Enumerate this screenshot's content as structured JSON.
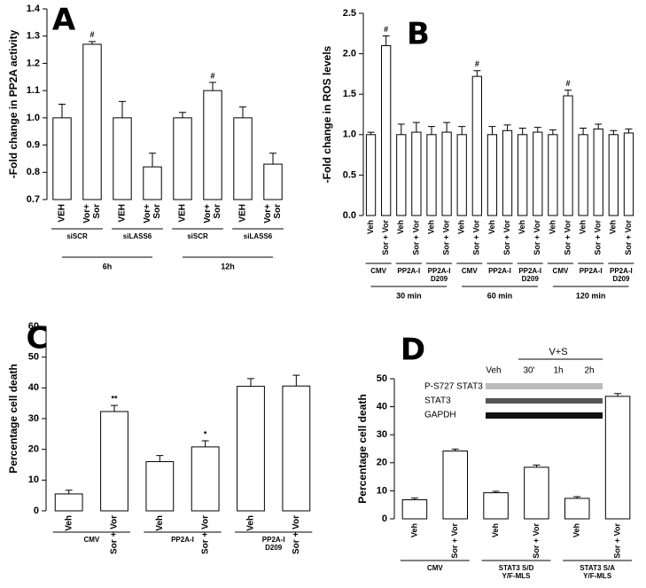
{
  "chart_data": [
    {
      "type": "bar",
      "panel": "A",
      "ylabel": "-Fold change in PP2A activity",
      "categories": [
        "VEH",
        [
          "Vor+",
          "Sor"
        ],
        "VEH",
        [
          "Vor+",
          "Sor"
        ],
        "VEH",
        [
          "Vor+",
          "Sor"
        ],
        "VEH",
        [
          "Vor+",
          "Sor"
        ]
      ],
      "values": [
        1.0,
        1.27,
        1.0,
        0.82,
        1.0,
        1.1,
        1.0,
        0.83
      ],
      "errors": [
        0.05,
        0.01,
        0.06,
        0.05,
        0.02,
        0.03,
        0.04,
        0.04
      ],
      "annotations": [
        null,
        "#",
        null,
        null,
        null,
        "#",
        null,
        null
      ],
      "groups": [
        [
          "siSCR"
        ],
        [
          "siLASS6"
        ],
        [
          "siSCR"
        ],
        [
          "siLASS6"
        ]
      ],
      "periods": [
        "6h",
        "12h"
      ],
      "color": "#ffffff",
      "ylim": [
        0.7,
        1.4
      ],
      "yticks": [
        0.7,
        0.8,
        0.9,
        {
          "value": 1,
          "label": "1.0"
        },
        1.1,
        1.2,
        1.3,
        1.4
      ]
    },
    {
      "type": "bar",
      "panel": "B",
      "ylabel": "-Fold change in ROS levels",
      "categories": [
        "Veh",
        "Sor + Vor",
        "Veh",
        "Sor + Vor",
        "Veh",
        "Sor + Vor",
        "Veh",
        "Sor + Vor",
        "Veh",
        "Sor + Vor",
        "Veh",
        "Sor + Vor",
        "Veh",
        "Sor + Vor",
        "Veh",
        "Sor + Vor",
        "Veh",
        "Sor + Vor"
      ],
      "values": [
        1.0,
        2.1,
        1.0,
        1.03,
        1.0,
        1.03,
        1.0,
        1.72,
        1.0,
        1.05,
        1.0,
        1.03,
        1.0,
        1.48,
        1.0,
        1.07,
        1.0,
        1.02
      ],
      "errors": [
        0.03,
        0.12,
        0.13,
        0.12,
        0.1,
        0.12,
        0.1,
        0.07,
        0.1,
        0.07,
        0.08,
        0.06,
        0.06,
        0.07,
        0.08,
        0.06,
        0.05,
        0.05
      ],
      "annotations": [
        null,
        "#",
        null,
        null,
        null,
        null,
        null,
        "#",
        null,
        null,
        null,
        null,
        null,
        "#",
        null,
        null,
        null,
        null
      ],
      "groups": [
        [
          "CMV"
        ],
        [
          "PP2A-I"
        ],
        [
          "PP2A-I",
          "D209"
        ],
        [
          "CMV"
        ],
        [
          "PP2A-I"
        ],
        [
          "PP2A-I",
          "D209"
        ],
        [
          "CMV"
        ],
        [
          "PP2A-I"
        ],
        [
          "PP2A-I",
          "D209"
        ]
      ],
      "periods": [
        "30 min",
        "60 min",
        "120 min"
      ],
      "color": "#ffffff",
      "ylim": [
        0,
        2.5
      ],
      "yticks": [
        {
          "value": 0,
          "label": "0.0"
        },
        0.5,
        {
          "value": 1,
          "label": "1.0"
        },
        1.5,
        {
          "value": 2,
          "label": "2.0"
        },
        2.5
      ]
    },
    {
      "type": "bar",
      "panel": "C",
      "ylabel": "Percentage cell death",
      "categories": [
        "Veh",
        "Sor + Vor",
        "Veh",
        "Sor + Vor",
        "Veh",
        "Sor + Vor"
      ],
      "values": [
        5.5,
        32.3,
        16,
        20.8,
        40.5,
        40.6
      ],
      "errors": [
        1.2,
        2,
        2,
        2,
        2.5,
        3.5
      ],
      "annotations": [
        null,
        "**",
        null,
        "*",
        null,
        null
      ],
      "groups": [
        [
          "CMV"
        ],
        [
          "PP2A-I"
        ],
        [
          "PP2A-I",
          "D209"
        ]
      ],
      "color": "#ffffff",
      "ylim": [
        0,
        60
      ],
      "yticks": [
        0,
        10,
        20,
        30,
        40,
        50,
        60
      ]
    },
    {
      "type": "bar",
      "panel": "D",
      "ylabel": "Percentage cell death",
      "categories": [
        "Veh",
        "Sor + Vor",
        "Veh",
        "Sor + Vor",
        "Veh",
        "Sor + Vor"
      ],
      "values": [
        6.8,
        24.2,
        9.3,
        18.4,
        7.3,
        43.7
      ],
      "errors": [
        0.6,
        0.7,
        0.5,
        0.8,
        0.6,
        1
      ],
      "groups": [
        [
          "CMV"
        ],
        [
          "STAT3 S/D",
          "Y/F-MLS"
        ],
        [
          "STAT3 S/A",
          "Y/F-MLS"
        ]
      ],
      "color": "#ffffff",
      "ylim": [
        0,
        50
      ],
      "yticks": [
        0,
        10,
        20,
        30,
        40,
        50
      ],
      "inset": {
        "treatment": "V+S",
        "lanes": [
          "Veh",
          "30'",
          "1h",
          "2h"
        ],
        "rows": [
          "P-S727 STAT3",
          "STAT3",
          "GAPDH"
        ]
      }
    }
  ]
}
